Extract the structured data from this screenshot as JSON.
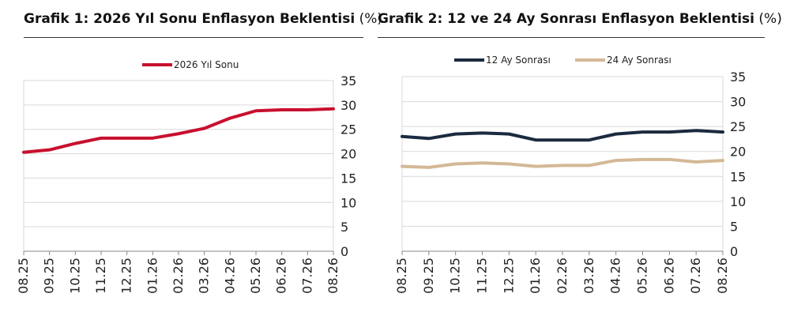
{
  "charts": [
    {
      "title": "Grafik 1: 2026 Yıl Sonu Enflasyon Beklentisi",
      "unit": "(%)",
      "chart_data": {
        "type": "line",
        "categories": [
          "08.25",
          "09.25",
          "10.25",
          "11.25",
          "12.25",
          "01.26",
          "02.26",
          "03.26",
          "04.26",
          "05.26",
          "06.26",
          "07.26",
          "08.26"
        ],
        "series": [
          {
            "name": "2026 Yıl Sonu",
            "color": "#c8102e",
            "values": [
              20.3,
              20.8,
              22.1,
              23.2,
              23.2,
              23.2,
              24.1,
              25.2,
              27.3,
              28.8,
              29.0,
              29.0,
              29.2
            ]
          }
        ],
        "ylim": [
          0,
          35
        ],
        "yticks": [
          0,
          5,
          10,
          15,
          20,
          25,
          30,
          35
        ],
        "grid": true,
        "legend": "top"
      }
    },
    {
      "title": "Grafik 2: 12 ve 24 Ay Sonrası Enflasyon Beklentisi",
      "unit": "(%)",
      "chart_data": {
        "type": "line",
        "categories": [
          "08.25",
          "09.25",
          "10.25",
          "11.25",
          "12.25",
          "01.26",
          "02.26",
          "03.26",
          "04.26",
          "05.26",
          "06.26",
          "07.26",
          "08.26"
        ],
        "series": [
          {
            "name": "12 Ay Sonrası",
            "color": "#1b2a3f",
            "values": [
              23.0,
              22.6,
              23.5,
              23.7,
              23.5,
              22.3,
              22.3,
              22.3,
              23.5,
              23.9,
              23.9,
              24.2,
              23.9
            ]
          },
          {
            "name": "24 Ay Sonrası",
            "color": "#d4b896",
            "values": [
              17.0,
              16.8,
              17.5,
              17.7,
              17.5,
              17.0,
              17.2,
              17.2,
              18.2,
              18.4,
              18.4,
              17.9,
              18.2
            ]
          }
        ],
        "ylim": [
          0,
          35
        ],
        "yticks": [
          0,
          5,
          10,
          15,
          20,
          25,
          30,
          35
        ],
        "grid": true,
        "legend": "top"
      }
    }
  ]
}
